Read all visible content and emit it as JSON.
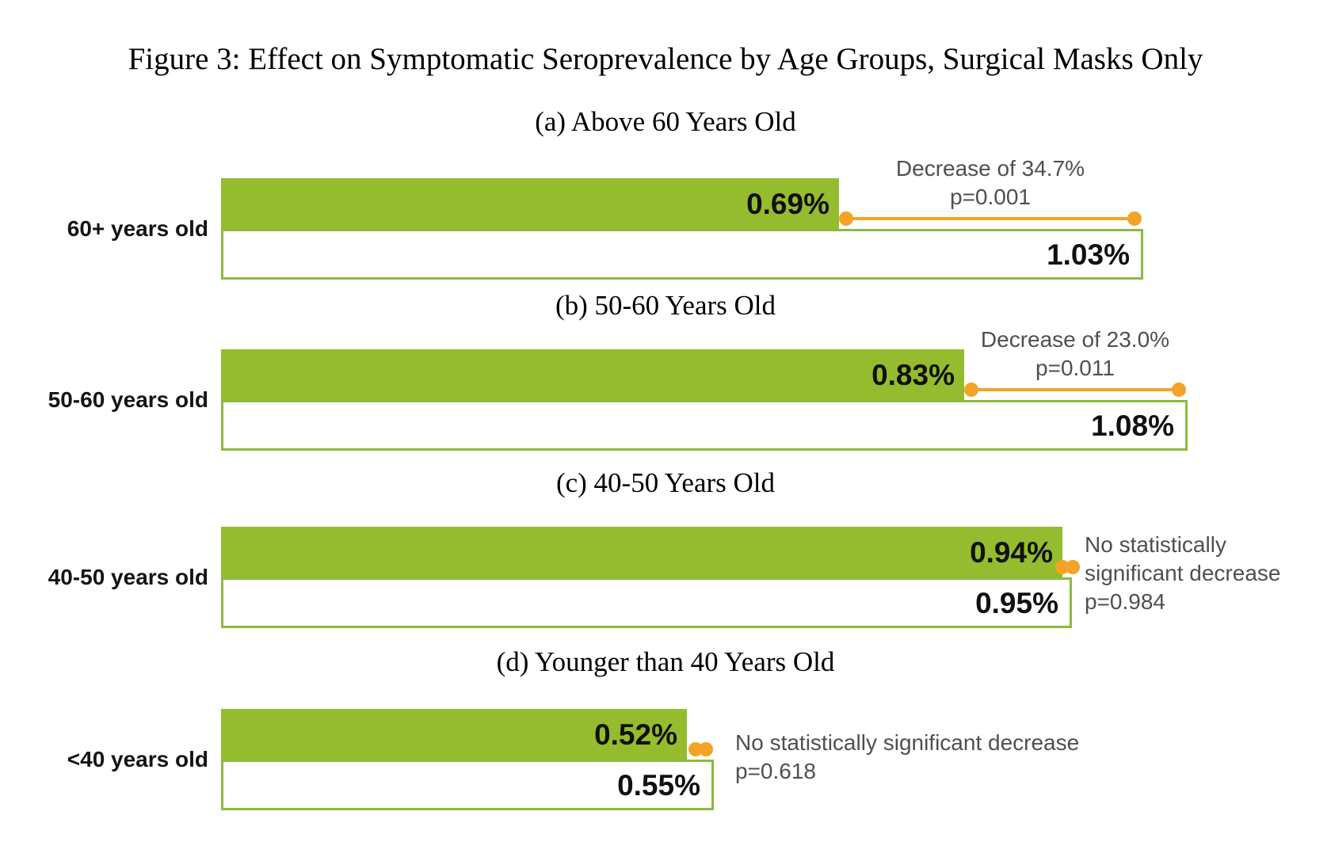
{
  "chart_data": {
    "type": "bar",
    "orientation": "horizontal",
    "title": "Figure 3: Effect on Symptomatic Seroprevalence by Age Groups, Surgical Masks Only",
    "value_unit": "%",
    "legend": "none",
    "grid": false,
    "colors": {
      "bar_green": "#94BC2E",
      "bar_border_green": "#8CBB3E",
      "connector_orange": "#F3A426",
      "annotation_text": "#4F4F4F"
    },
    "panels": [
      {
        "subtitle": "(a) Above 60 Years Old",
        "category": "60+ years old",
        "green_value": 0.69,
        "green_label": "0.69%",
        "white_value": 1.03,
        "white_label": "1.03%",
        "significant": true,
        "annotation_line1": "Decrease of 34.7%",
        "annotation_line2": "p=0.001",
        "annotation_line3": ""
      },
      {
        "subtitle": "(b) 50-60 Years Old",
        "category": "50-60 years old",
        "green_value": 0.83,
        "green_label": "0.83%",
        "white_value": 1.08,
        "white_label": "1.08%",
        "significant": true,
        "annotation_line1": "Decrease of 23.0%",
        "annotation_line2": "p=0.011",
        "annotation_line3": ""
      },
      {
        "subtitle": "(c) 40-50 Years Old",
        "category": "40-50 years old",
        "green_value": 0.94,
        "green_label": "0.94%",
        "white_value": 0.95,
        "white_label": "0.95%",
        "significant": false,
        "annotation_line1": "No statistically",
        "annotation_line2": "significant decrease",
        "annotation_line3": "p=0.984"
      },
      {
        "subtitle": "(d) Younger than 40 Years Old",
        "category": "<40 years old",
        "green_value": 0.52,
        "green_label": "0.52%",
        "white_value": 0.55,
        "white_label": "0.55%",
        "significant": false,
        "annotation_line1": "No statistically significant decrease",
        "annotation_line2": "p=0.618",
        "annotation_line3": ""
      }
    ]
  }
}
